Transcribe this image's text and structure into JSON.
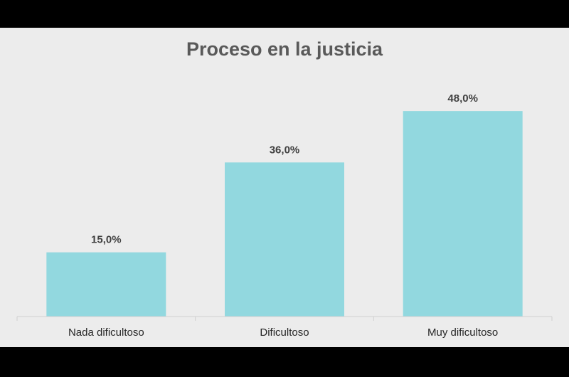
{
  "chart_data": {
    "type": "bar",
    "title": "Proceso en la justicia",
    "categories": [
      "Nada dificultoso",
      "Dificultoso",
      "Muy dificultoso"
    ],
    "values": [
      15.0,
      36.0,
      48.0
    ],
    "data_labels": [
      "15,0%",
      "36,0%",
      "48,0%"
    ],
    "xlabel": "",
    "ylabel": "",
    "ylim": [
      0,
      56
    ],
    "y_axis_visible": false,
    "grid": false,
    "legend": "none",
    "colors": {
      "bar": "#92d8df",
      "background": "#ececec",
      "frame": "#000000"
    }
  }
}
